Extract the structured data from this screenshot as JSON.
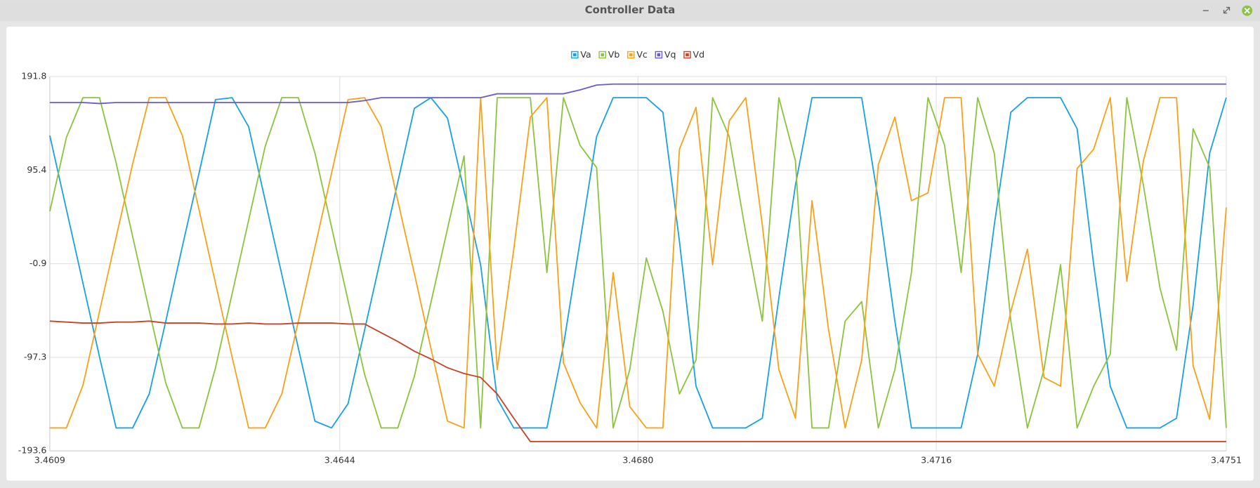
{
  "window": {
    "title": "Controller Data"
  },
  "chart_data": {
    "type": "line",
    "x": [
      3.4609,
      3.4611,
      3.4613,
      3.4615,
      3.4617,
      3.4619,
      3.4621,
      3.4623,
      3.4625,
      3.4627,
      3.4629,
      3.4631,
      3.4633,
      3.4635,
      3.4637,
      3.4639,
      3.4641,
      3.4643,
      3.4645,
      3.4647,
      3.4649,
      3.4651,
      3.4653,
      3.4655,
      3.4657,
      3.4659,
      3.4661,
      3.4663,
      3.4665,
      3.4667,
      3.4669,
      3.4671,
      3.4673,
      3.4675,
      3.4677,
      3.4679,
      3.4681,
      3.4683,
      3.4685,
      3.4687,
      3.4689,
      3.4691,
      3.4693,
      3.4695,
      3.4697,
      3.4699,
      3.4701,
      3.4703,
      3.4705,
      3.4707,
      3.4709,
      3.4711,
      3.4713,
      3.4715,
      3.4717,
      3.4719,
      3.4721,
      3.4723,
      3.4725,
      3.4727,
      3.4729,
      3.4731,
      3.4733,
      3.4735,
      3.4737,
      3.4739,
      3.4741,
      3.4743,
      3.4745,
      3.4747,
      3.4749,
      3.4751
    ],
    "series": [
      {
        "name": "Va",
        "color": "#1ba1e2",
        "values": [
          131,
          55,
          -21,
          -97,
          -170,
          -170,
          -135,
          -60,
          17,
          92,
          168,
          170,
          140,
          64,
          -12,
          -88,
          -163,
          -170,
          -145,
          -69,
          7,
          83,
          159,
          170,
          149,
          74,
          -2,
          -140,
          -170,
          -170,
          -170,
          -85,
          22,
          130,
          170,
          170,
          170,
          155,
          22,
          -127,
          -170,
          -170,
          -170,
          -160,
          -36,
          80,
          170,
          170,
          170,
          170,
          64,
          -60,
          -170,
          -170,
          -170,
          -170,
          -94,
          39,
          155,
          170,
          170,
          170,
          138,
          -2,
          -127,
          -170,
          -170,
          -170,
          -160,
          -44,
          113,
          170
        ]
      },
      {
        "name": "Vb",
        "color": "#8cc43f",
        "values": [
          53,
          129,
          170,
          170,
          103,
          27,
          -49,
          -124,
          -170,
          -170,
          -108,
          -32,
          44,
          120,
          170,
          170,
          113,
          37,
          -39,
          -115,
          -170,
          -170,
          -117,
          -41,
          35,
          110,
          -170,
          170,
          170,
          170,
          -10,
          170,
          121,
          98,
          -170,
          -110,
          5,
          -50,
          -135,
          -100,
          170,
          130,
          31,
          -60,
          170,
          105,
          -170,
          -170,
          -60,
          -40,
          -170,
          -110,
          -10,
          170,
          121,
          -10,
          170,
          113,
          -60,
          -170,
          -110,
          -2,
          -170,
          -127,
          -94,
          170,
          80,
          -26,
          -90,
          138,
          98,
          -170
        ]
      },
      {
        "name": "Vc",
        "color": "#f7a21b",
        "values": [
          -170,
          -170,
          -126,
          -50,
          26,
          102,
          170,
          170,
          131,
          55,
          -21,
          -97,
          -170,
          -170,
          -135,
          -60,
          16,
          92,
          168,
          170,
          140,
          64,
          -11,
          -88,
          -163,
          -170,
          170,
          -110,
          14,
          150,
          170,
          -103,
          -144,
          -170,
          -10,
          -148,
          -170,
          -170,
          117,
          160,
          -2,
          146,
          170,
          39,
          -110,
          -160,
          64,
          -69,
          -170,
          -100,
          101,
          150,
          64,
          72,
          170,
          170,
          -94,
          -127,
          -50,
          14,
          -118,
          -127,
          97,
          117,
          170,
          -19,
          105,
          170,
          170,
          -106,
          -161,
          57
        ]
      },
      {
        "name": "Vq",
        "color": "#6a5acd",
        "values": [
          165,
          165,
          165,
          164,
          165,
          165,
          165,
          165,
          165,
          165,
          165,
          165,
          165,
          165,
          165,
          165,
          165,
          165,
          165,
          167,
          170,
          170,
          170,
          170,
          170,
          170,
          170,
          174,
          174,
          174,
          174,
          174,
          178,
          183,
          184,
          184,
          184,
          184,
          184,
          184,
          184,
          184,
          184,
          184,
          184,
          184,
          184,
          184,
          184,
          184,
          184,
          184,
          184,
          184,
          184,
          184,
          184,
          184,
          184,
          184,
          184,
          184,
          184,
          184,
          184,
          184,
          184,
          184,
          184,
          184,
          184,
          184
        ]
      },
      {
        "name": "Vd",
        "color": "#c4432b",
        "values": [
          -60,
          -61,
          -62,
          -62,
          -61,
          -61,
          -60,
          -62,
          -62,
          -62,
          -63,
          -63,
          -62,
          -63,
          -63,
          -62,
          -62,
          -62,
          -63,
          -63,
          -72,
          -81,
          -91,
          -99,
          -108,
          -114,
          -118,
          -135,
          -160,
          -184,
          -184,
          -184,
          -184,
          -184,
          -184,
          -184,
          -184,
          -184,
          -184,
          -184,
          -184,
          -184,
          -184,
          -184,
          -184,
          -184,
          -184,
          -184,
          -184,
          -184,
          -184,
          -184,
          -184,
          -184,
          -184,
          -184,
          -184,
          -184,
          -184,
          -184,
          -184,
          -184,
          -184,
          -184,
          -184,
          -184,
          -184,
          -184,
          -184,
          -184,
          -184,
          -184
        ]
      }
    ],
    "xlim": [
      3.4609,
      3.4751
    ],
    "xticks": [
      3.4609,
      3.4644,
      {
        "value": 3.468,
        "label": "3.4680"
      },
      3.4716,
      3.4751
    ],
    "ylim": [
      -193.6,
      191.8
    ],
    "yticks": [
      191.8,
      95.4,
      -0.9,
      -97.3,
      -193.6
    ],
    "grid": true,
    "legend": "top"
  }
}
